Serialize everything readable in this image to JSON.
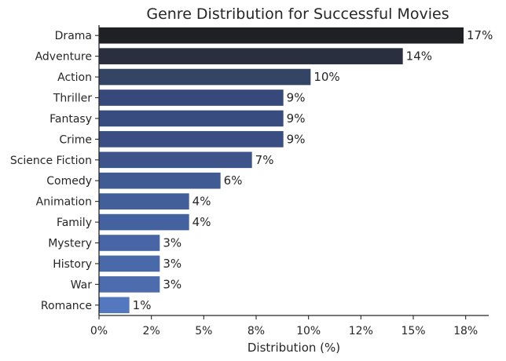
{
  "chart_data": {
    "type": "bar",
    "orientation": "horizontal",
    "title": "Genre Distribution for Successful Movies",
    "xlabel": "Distribution (%)",
    "ylabel": "",
    "categories": [
      "Drama",
      "Adventure",
      "Action",
      "Thriller",
      "Fantasy",
      "Crime",
      "Science Fiction",
      "Comedy",
      "Animation",
      "Family",
      "Mystery",
      "History",
      "War",
      "Romance"
    ],
    "values": [
      17.4,
      14.5,
      10.1,
      8.8,
      8.8,
      8.8,
      7.3,
      5.8,
      4.3,
      4.3,
      2.9,
      2.9,
      2.9,
      1.45
    ],
    "data_labels": [
      "17%",
      "14%",
      "10%",
      "9%",
      "9%",
      "9%",
      "7%",
      "6%",
      "4%",
      "4%",
      "3%",
      "3%",
      "3%",
      "1%"
    ],
    "xlim": [
      0,
      18.6
    ],
    "xticks": [
      0,
      2.5,
      5,
      7.5,
      10,
      12.5,
      15,
      17.5
    ],
    "xtick_labels": [
      "0%",
      "2%",
      "5%",
      "8%",
      "10%",
      "12%",
      "15%",
      "18%"
    ],
    "grid": false,
    "legend": "none",
    "colors": [
      "#1f2024",
      "#2a2f3f",
      "#334465",
      "#37497a",
      "#394c80",
      "#3a4e84",
      "#3d548b",
      "#405a93",
      "#435f9a",
      "#4562a0",
      "#4866a6",
      "#4a69a9",
      "#4c6cad",
      "#5478c0"
    ]
  }
}
